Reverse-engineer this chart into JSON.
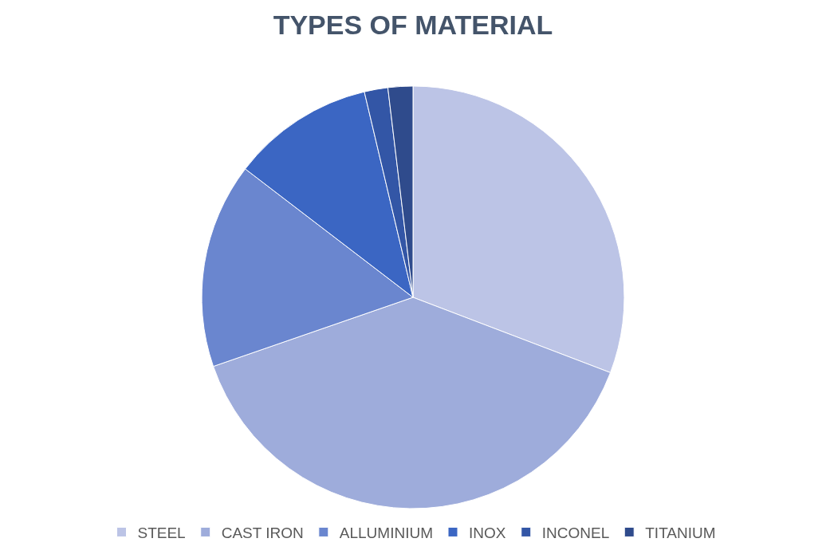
{
  "chart_data": {
    "type": "pie",
    "title": "TYPES OF MATERIAL",
    "categories": [
      "STEEL",
      "CAST IRON",
      "ALLUMINIUM",
      "INOX",
      "INCONEL",
      "TITANIUM"
    ],
    "values": [
      30.8,
      38.9,
      15.7,
      10.9,
      1.8,
      1.9
    ],
    "colors": [
      "#bcc4e6",
      "#9eacdb",
      "#6a86cf",
      "#3b66c3",
      "#3356a6",
      "#2f4b8c"
    ],
    "legend": "bottom"
  }
}
